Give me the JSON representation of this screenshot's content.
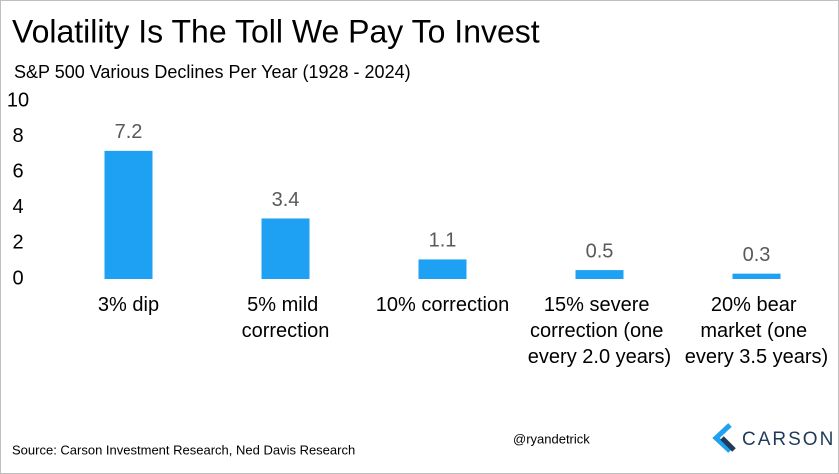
{
  "chart_data": {
    "type": "bar",
    "title": "Volatility Is The Toll We Pay To Invest",
    "subtitle": "S&P 500 Various Declines Per Year (1928 - 2024)",
    "categories": [
      "3% dip",
      "5% mild correction",
      "10% correction",
      "15% severe correction (one every 2.0 years)",
      "20% bear market (one every 3.5 years)"
    ],
    "values": [
      7.2,
      3.4,
      1.1,
      0.5,
      0.3
    ],
    "color": "#1ea1f2",
    "ylim": [
      0,
      10
    ],
    "yticks": [
      0,
      2,
      4,
      6,
      8,
      10
    ],
    "grid": false,
    "source": "Source: Carson Investment Research, Ned Davis Research",
    "handle": "@ryandetrick",
    "logo": "CARSON"
  }
}
